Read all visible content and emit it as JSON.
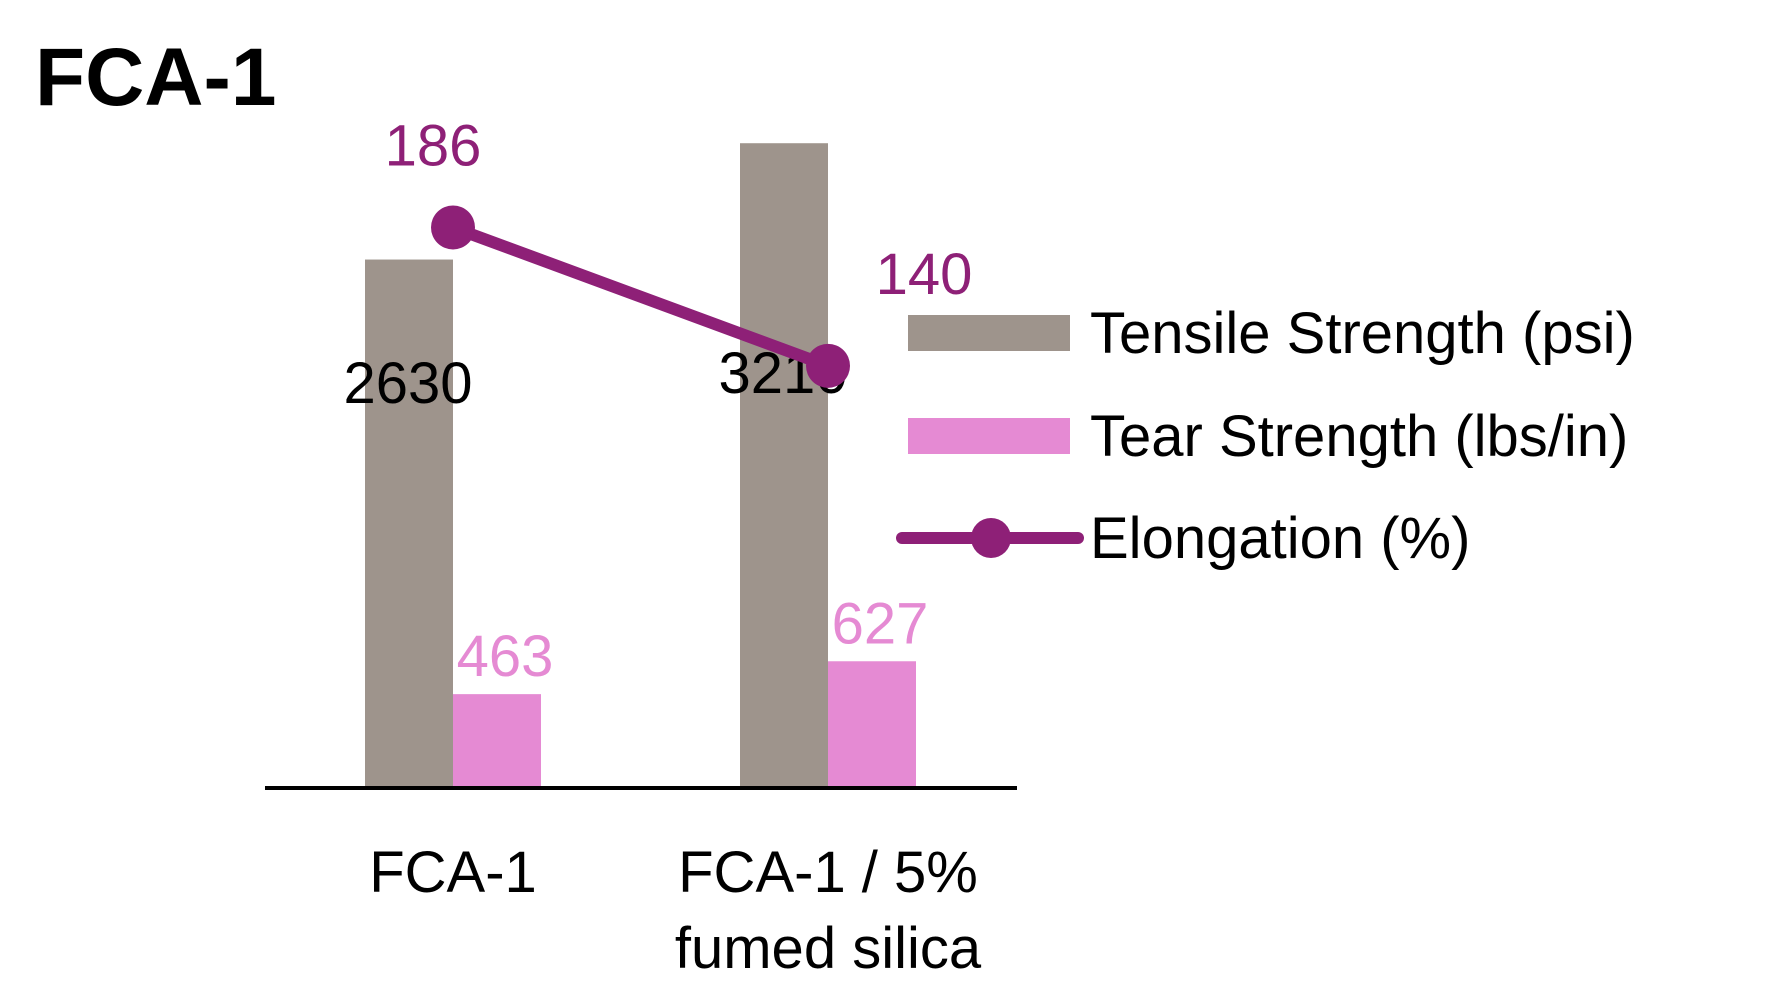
{
  "title": "FCA-1",
  "colors": {
    "tensile": "#9e948c",
    "tear": "#e58ad3",
    "elongation": "#8e2077",
    "axis": "#000000",
    "tensile_label": "#000000"
  },
  "chart_data": {
    "type": "bar",
    "title": "FCA-1",
    "categories": [
      [
        "FCA-1"
      ],
      [
        "FCA-1 / 5%",
        "fumed silica"
      ]
    ],
    "series": [
      {
        "name": "Tensile Strength (psi)",
        "type": "bar",
        "values": [
          2630,
          3210
        ],
        "labels": [
          "2630",
          "3210"
        ]
      },
      {
        "name": "Tear Strength (lbs/in)",
        "type": "bar",
        "values": [
          463,
          627
        ],
        "labels": [
          "463",
          "627"
        ]
      },
      {
        "name": "Elongation (%)",
        "type": "line",
        "values": [
          186,
          140
        ],
        "labels": [
          "186",
          "140"
        ]
      }
    ],
    "xlabel": "",
    "ylabel": "",
    "ylim": [
      0,
      3600
    ],
    "ylim_secondary": [
      0,
      240
    ],
    "grid": false,
    "legend_position": "right"
  }
}
